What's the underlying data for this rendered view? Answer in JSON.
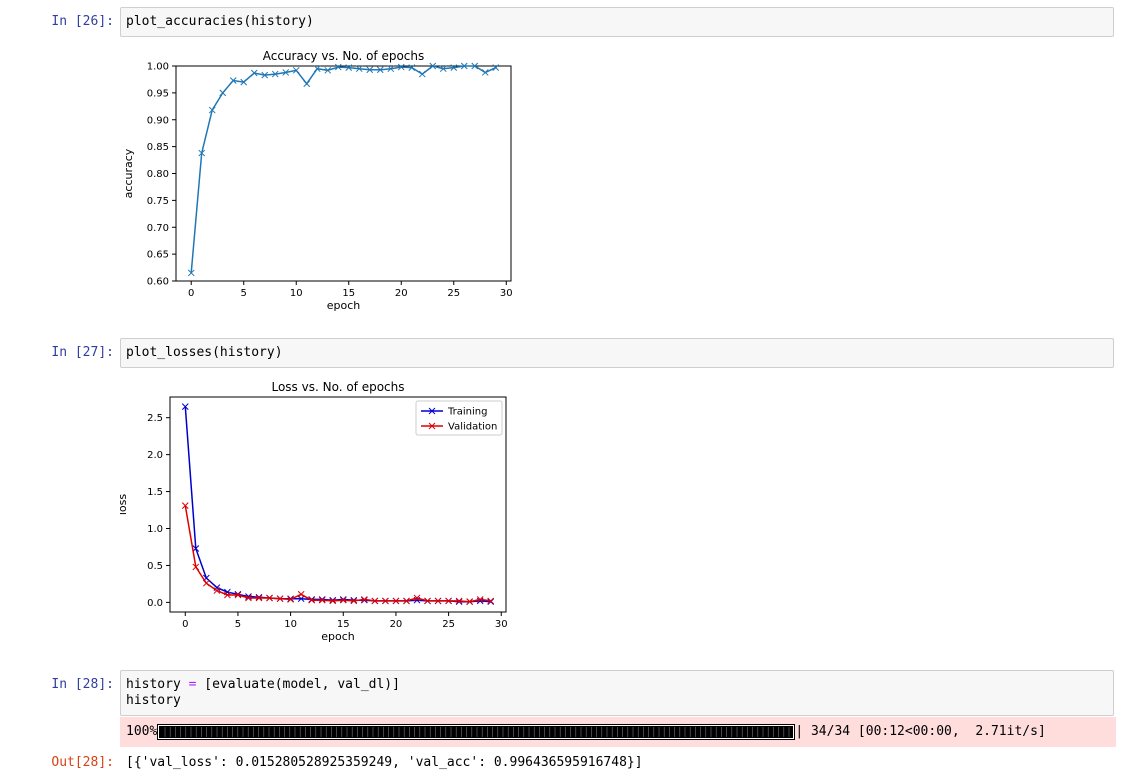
{
  "cells": [
    {
      "prompt": "In [26]:",
      "code": "plot_accuracies(history)"
    },
    {
      "prompt": "In [27]:",
      "code": "plot_losses(history)"
    },
    {
      "prompt": "In [28]:",
      "code_line1_a": "history ",
      "code_line1_op": "=",
      "code_line1_b": " [evaluate(model, val_dl)]",
      "code_line2": "history"
    }
  ],
  "progress": {
    "percent_label": "100%",
    "fraction": 1.0,
    "right_text": "| 34/34 [00:12<00:00,  2.71it/s]"
  },
  "output": {
    "prompt": "Out[28]:",
    "text": "[{'val_loss': 0.015280528925359249, 'val_acc': 0.996436595916748}]"
  },
  "colors": {
    "accuracy_line": "#1f77b4",
    "training": "#0000cc",
    "validation": "#dd0000",
    "prompt_in": "#303f9f",
    "prompt_out": "#d84315",
    "stderr_bg": "#ffdddd"
  },
  "chart_data": [
    {
      "type": "line",
      "title": "Accuracy vs. No. of epochs",
      "xlabel": "epoch",
      "ylabel": "accuracy",
      "xlim": [
        -1.45,
        30.45
      ],
      "ylim": [
        0.6,
        1.0
      ],
      "xticks": [
        "0",
        "5",
        "10",
        "15",
        "20",
        "25",
        "30"
      ],
      "yticks": [
        "0.60",
        "0.65",
        "0.70",
        "0.75",
        "0.80",
        "0.85",
        "0.90",
        "0.95",
        "1.00"
      ],
      "x": [
        0,
        1,
        2,
        3,
        4,
        5,
        6,
        7,
        8,
        9,
        10,
        11,
        12,
        13,
        14,
        15,
        16,
        17,
        18,
        19,
        20,
        21,
        22,
        23,
        24,
        25,
        26,
        27,
        28,
        29
      ],
      "series": [
        {
          "values": [
            0.615,
            0.838,
            0.918,
            0.95,
            0.973,
            0.97,
            0.987,
            0.983,
            0.985,
            0.988,
            0.992,
            0.967,
            0.995,
            0.992,
            0.998,
            0.997,
            0.995,
            0.993,
            0.993,
            0.995,
            0.998,
            0.997,
            0.985,
            1.0,
            0.995,
            0.997,
            1.0,
            1.0,
            0.988,
            0.997
          ],
          "marker": "x"
        }
      ],
      "grid": false
    },
    {
      "type": "line",
      "title": "Loss vs. No. of epochs",
      "xlabel": "epoch",
      "ylabel": "loss",
      "xlim": [
        -1.45,
        30.45
      ],
      "ylim": [
        -0.13,
        2.78
      ],
      "xticks": [
        "0",
        "5",
        "10",
        "15",
        "20",
        "25",
        "30"
      ],
      "yticks": [
        "0.0",
        "0.5",
        "1.0",
        "1.5",
        "2.0",
        "2.5"
      ],
      "legend": "top-right",
      "x": [
        0,
        1,
        2,
        3,
        4,
        5,
        6,
        7,
        8,
        9,
        10,
        11,
        12,
        13,
        14,
        15,
        16,
        17,
        18,
        19,
        20,
        21,
        22,
        23,
        24,
        25,
        26,
        27,
        28,
        29
      ],
      "series": [
        {
          "name": "Training",
          "values": [
            2.65,
            0.73,
            0.33,
            0.2,
            0.14,
            0.11,
            0.08,
            0.07,
            0.06,
            0.05,
            0.05,
            0.05,
            0.04,
            0.04,
            0.03,
            0.04,
            0.03,
            0.03,
            0.02,
            0.02,
            0.02,
            0.02,
            0.03,
            0.02,
            0.02,
            0.02,
            0.01,
            0.01,
            0.02,
            0.01
          ]
        },
        {
          "name": "Validation",
          "values": [
            1.31,
            0.48,
            0.26,
            0.16,
            0.1,
            0.1,
            0.06,
            0.06,
            0.06,
            0.05,
            0.04,
            0.11,
            0.03,
            0.03,
            0.02,
            0.03,
            0.02,
            0.04,
            0.02,
            0.02,
            0.02,
            0.02,
            0.06,
            0.02,
            0.02,
            0.02,
            0.02,
            0.01,
            0.04,
            0.02
          ]
        }
      ],
      "grid": false
    }
  ]
}
